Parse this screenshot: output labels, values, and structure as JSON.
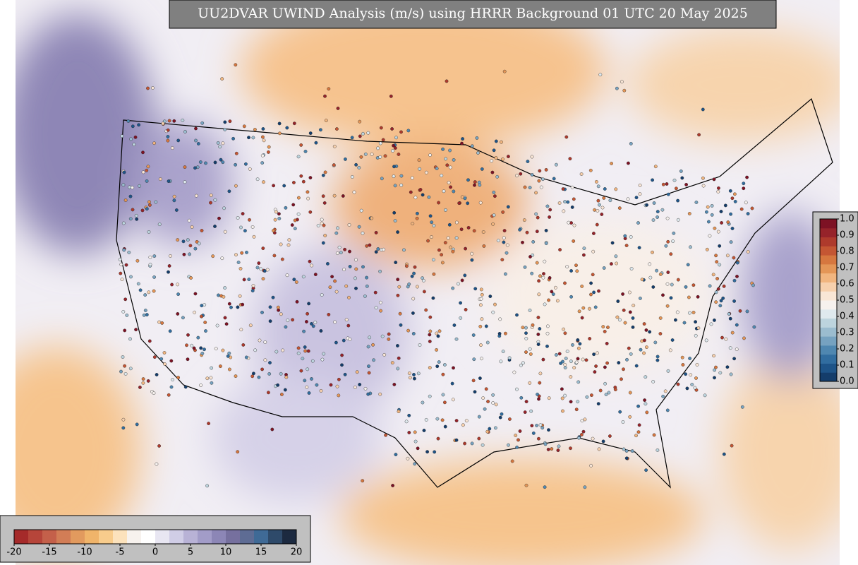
{
  "title": "UU2DVAR UWIND Analysis (m/s) using HRRR Background 01 UTC 20 May 2025",
  "colorbars": [
    {
      "orientation": "horizontal",
      "lim": [
        -20,
        20
      ],
      "ticks": [
        -20,
        -15,
        -10,
        -5,
        0,
        5,
        10,
        15,
        20
      ],
      "colors": [
        "#a52a2a",
        "#b6453a",
        "#c4604a",
        "#d27d56",
        "#e29a5e",
        "#f0b46a",
        "#f8cc8c",
        "#fce2bc",
        "#f7f2ee",
        "#ffffff",
        "#e8e6f2",
        "#d0cde6",
        "#b8b2d6",
        "#a29cc8",
        "#8c86b6",
        "#76709e",
        "#5e6c94",
        "#3f6a96",
        "#2e4a6a",
        "#1c2a40"
      ]
    },
    {
      "orientation": "vertical",
      "lim": [
        0,
        1
      ],
      "ticks": [
        {
          "value": 0,
          "label": "0.0"
        },
        0.1,
        0.2,
        0.3,
        0.4,
        0.5,
        0.6,
        0.7,
        0.8,
        0.9,
        {
          "value": 1,
          "label": "1.0"
        }
      ],
      "colors": [
        "#143d6b",
        "#1e5488",
        "#316d9f",
        "#4f87b0",
        "#76a2c0",
        "#9bbccf",
        "#bdd4de",
        "#dfe9ee",
        "#f6f1ee",
        "#f9e6d6",
        "#f7d0ad",
        "#f1b57f",
        "#e49657",
        "#d6773f",
        "#c45633",
        "#ae3a2c",
        "#96232a",
        "#7d1224"
      ]
    }
  ]
}
